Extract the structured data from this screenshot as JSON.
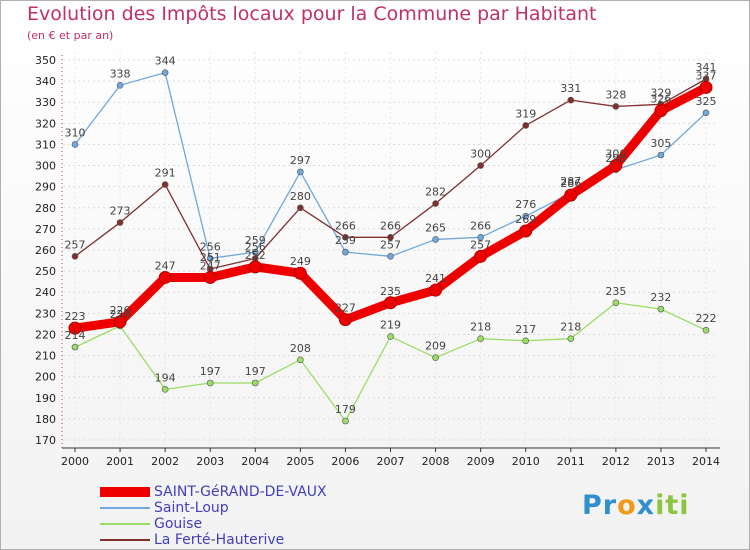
{
  "title": "Evolution des Impôts locaux pour la Commune par Habitant",
  "subtitle": "(en € et par an)",
  "logo": {
    "parts": [
      "Pr",
      "o",
      "x",
      "iti"
    ],
    "colors": [
      "#2f8fcf",
      "#f09a1a",
      "#2f8fcf",
      "#8cc63f"
    ]
  },
  "chart_data": {
    "type": "line",
    "title": "Evolution des Impôts locaux pour la Commune par Habitant",
    "subtitle": "(en € et par an)",
    "xlabel": "",
    "ylabel": "",
    "categories": [
      "2000",
      "2001",
      "2002",
      "2003",
      "2004",
      "2005",
      "2006",
      "2007",
      "2008",
      "2009",
      "2010",
      "2011",
      "2012",
      "2013",
      "2014"
    ],
    "ylim": [
      170,
      350
    ],
    "yticks": [
      170,
      180,
      190,
      200,
      210,
      220,
      230,
      240,
      250,
      260,
      270,
      280,
      290,
      300,
      310,
      320,
      330,
      340,
      350
    ],
    "series": [
      {
        "name": "SAINT-GéRAND-DE-VAUX",
        "color": "#ee0000",
        "values": [
          223,
          226,
          247,
          247,
          252,
          249,
          227,
          235,
          241,
          257,
          269,
          286,
          300,
          326,
          337
        ]
      },
      {
        "name": "Saint-Loup",
        "color": "#6fa8dc",
        "values": [
          310,
          338,
          344,
          256,
          259,
          297,
          259,
          257,
          265,
          266,
          276,
          287,
          298,
          305,
          325
        ]
      },
      {
        "name": "Gouise",
        "color": "#99dd66",
        "values": [
          214,
          224,
          194,
          197,
          197,
          208,
          179,
          219,
          209,
          218,
          217,
          218,
          235,
          232,
          222
        ]
      },
      {
        "name": "La Ferté-Hauterive",
        "color": "#802f2f",
        "values": [
          257,
          273,
          291,
          251,
          256,
          280,
          266,
          266,
          282,
          300,
          319,
          331,
          328,
          329,
          341
        ]
      }
    ]
  }
}
